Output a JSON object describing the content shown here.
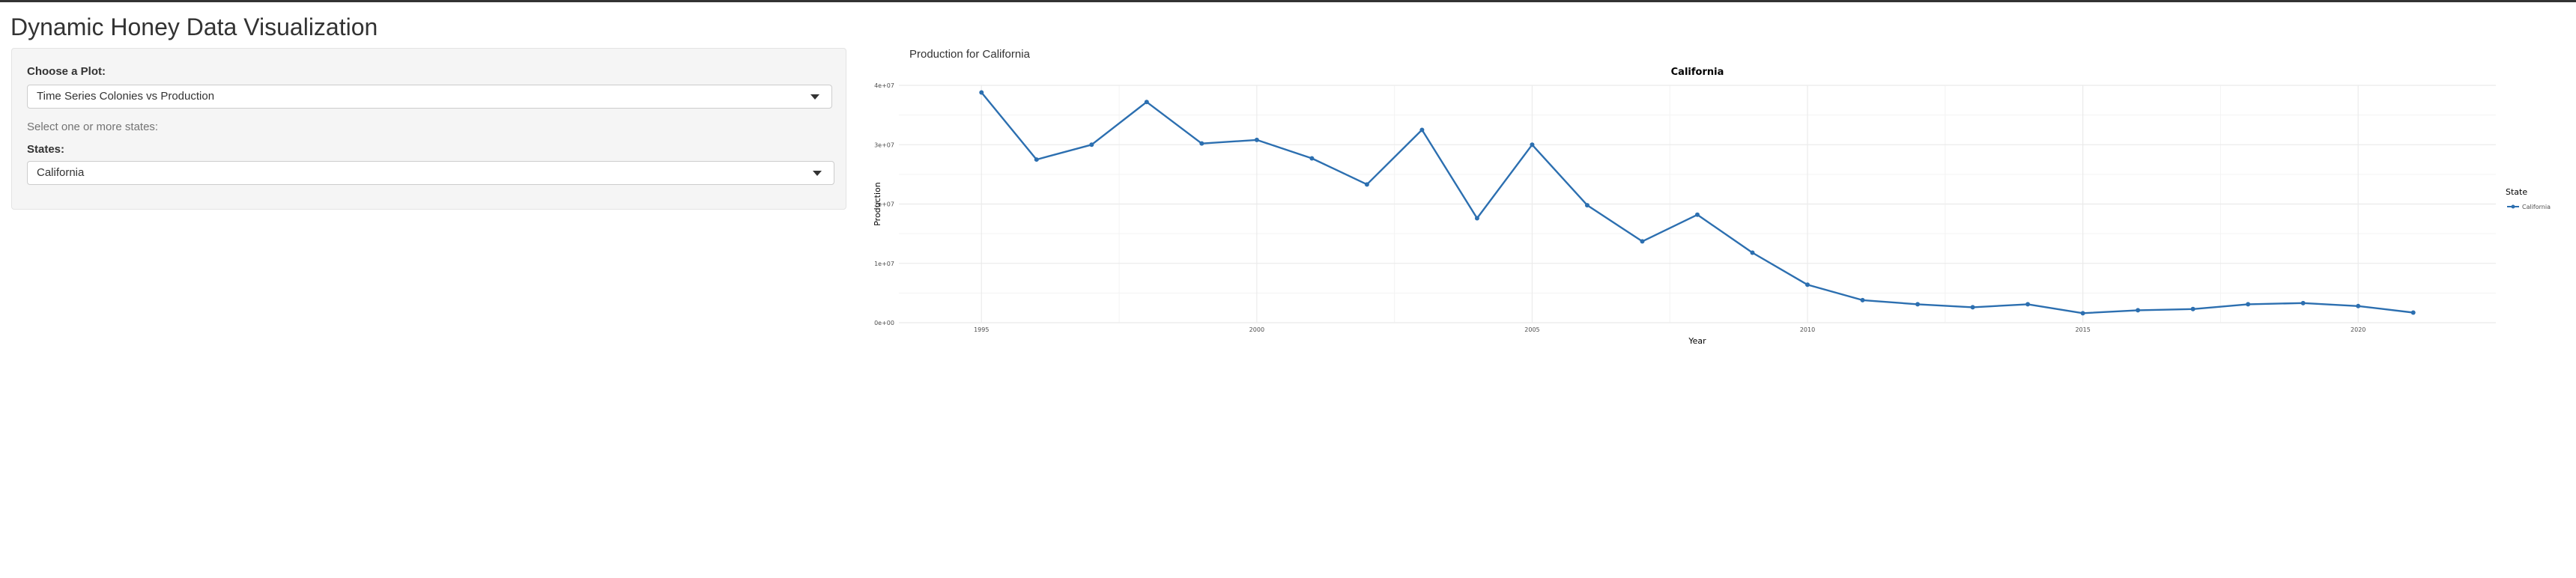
{
  "app": {
    "title": "Dynamic Honey Data Visualization"
  },
  "sidebar": {
    "plot_label": "Choose a Plot:",
    "plot_value": "Time Series Colonies vs Production",
    "states_help": "Select one or more states:",
    "states_label": "States:",
    "states_value": "California"
  },
  "main": {
    "plot_heading": "Production for California"
  },
  "colors": {
    "series": "#2c6fb0",
    "grid": "#ebebeb",
    "text": "#333333"
  },
  "chart_data": {
    "type": "line",
    "title": "California",
    "xlabel": "Year",
    "ylabel": "Production",
    "xlim": [
      1993.5,
      2022.5
    ],
    "ylim": [
      0,
      40000000
    ],
    "x_ticks": [
      1995,
      2000,
      2005,
      2010,
      2015,
      2020
    ],
    "x_tick_labels": [
      "1995",
      "2000",
      "2005",
      "2010",
      "2015",
      "2020"
    ],
    "y_ticks": [
      0,
      10000000,
      20000000,
      30000000,
      40000000
    ],
    "y_tick_labels": [
      "0e+00",
      "1e+07",
      "2e+07",
      "3e+07",
      "4e+07"
    ],
    "grid": true,
    "legend": {
      "title": "State",
      "position": "right"
    },
    "series": [
      {
        "name": "California",
        "x": [
          1995,
          1996,
          1997,
          1998,
          1999,
          2000,
          2001,
          2002,
          2003,
          2004,
          2005,
          2006,
          2007,
          2008,
          2009,
          2010,
          2011,
          2012,
          2013,
          2014,
          2015,
          2016,
          2017,
          2018,
          2019,
          2020,
          2021
        ],
        "y": [
          38800000,
          27500000,
          30000000,
          37200000,
          30200000,
          30800000,
          27700000,
          23300000,
          32500000,
          17600000,
          30000000,
          19800000,
          13700000,
          18200000,
          11800000,
          6400000,
          3800000,
          3100000,
          2600000,
          3100000,
          1600000,
          2100000,
          2300000,
          3100000,
          3300000,
          2800000,
          1700000
        ]
      }
    ]
  }
}
